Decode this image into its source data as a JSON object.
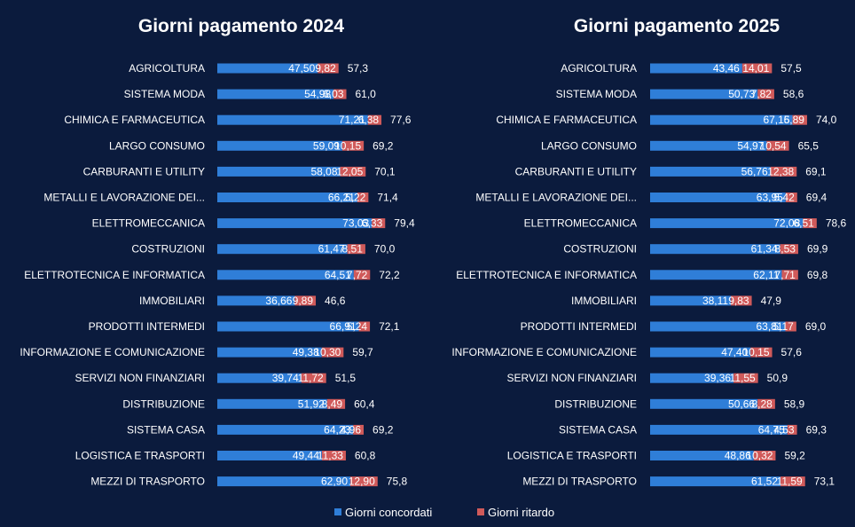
{
  "colors": {
    "background": "#0b1b3d",
    "agreed": "#2f7ed8",
    "delay": "#d05a5a",
    "text": "#ffffff"
  },
  "legend": [
    {
      "label": "Giorni concordati",
      "color": "#2f7ed8"
    },
    {
      "label": "Giorni ritardo",
      "color": "#d05a5a"
    }
  ],
  "chart_data": [
    {
      "type": "bar",
      "orientation": "horizontal",
      "stacked": true,
      "title": "Giorni pagamento 2024",
      "categories": [
        "AGRICOLTURA",
        "SISTEMA MODA",
        "CHIMICA E FARMACEUTICA",
        "LARGO CONSUMO",
        "CARBURANTI E UTILITY",
        "METALLI E LAVORAZIONE DEI...",
        "ELETTROMECCANICA",
        "COSTRUZIONI",
        "ELETTROTECNICA E INFORMATICA",
        "IMMOBILIARI",
        "PRODOTTI INTERMEDI",
        "INFORMAZIONE E COMUNICAZIONE",
        "SERVIZI NON FINANZIARI",
        "DISTRIBUZIONE",
        "SISTEMA CASA",
        "LOGISTICA E TRASPORTI",
        "MEZZI DI TRASPORTO"
      ],
      "series": [
        {
          "name": "Giorni concordati",
          "values": [
            47.5,
            54.98,
            71.21,
            59.09,
            58.08,
            66.21,
            73.03,
            61.47,
            64.51,
            36.66,
            66.91,
            49.38,
            39.74,
            51.92,
            64.23,
            49.44,
            62.9
          ],
          "labels": [
            "47,50",
            "54,98",
            "71,21",
            "59,09",
            "58,08",
            "66,21",
            "73,03",
            "61,47",
            "64,51",
            "36,66",
            "66,91",
            "49,38",
            "39,74",
            "51,92",
            "64,23",
            "49,44",
            "62,90"
          ]
        },
        {
          "name": "Giorni ritardo",
          "values": [
            9.82,
            6.03,
            6.38,
            10.15,
            12.05,
            5.22,
            6.33,
            8.51,
            7.72,
            9.89,
            5.24,
            10.3,
            11.72,
            8.49,
            4.96,
            11.33,
            12.9
          ],
          "labels": [
            "9,82",
            "6,03",
            "6,38",
            "10,15",
            "12,05",
            "5,22",
            "6,33",
            "8,51",
            "7,72",
            "9,89",
            "5,24",
            "10,30",
            "11,72",
            "8,49",
            "4,96",
            "11,33",
            "12,90"
          ]
        }
      ],
      "totals": [
        57.3,
        61.0,
        77.6,
        69.2,
        70.1,
        71.4,
        79.4,
        70.0,
        72.2,
        46.6,
        72.1,
        59.7,
        51.5,
        60.4,
        69.2,
        60.8,
        75.8
      ],
      "total_labels": [
        "57,3",
        "61,0",
        "77,6",
        "69,2",
        "70,1",
        "71,4",
        "79,4",
        "70,0",
        "72,2",
        "46,6",
        "72,1",
        "59,7",
        "51,5",
        "60,4",
        "69,2",
        "60,8",
        "75,8"
      ],
      "xlim": [
        0,
        100
      ],
      "grid": false
    },
    {
      "type": "bar",
      "orientation": "horizontal",
      "stacked": true,
      "title": "Giorni pagamento 2025",
      "categories": [
        "AGRICOLTURA",
        "SISTEMA MODA",
        "CHIMICA E FARMACEUTICA",
        "LARGO CONSUMO",
        "CARBURANTI E UTILITY",
        "METALLI E LAVORAZIONE DEI...",
        "ELETTROMECCANICA",
        "COSTRUZIONI",
        "ELETTROTECNICA E INFORMATICA",
        "IMMOBILIARI",
        "PRODOTTI INTERMEDI",
        "INFORMAZIONE E COMUNICAZIONE",
        "SERVIZI NON FINANZIARI",
        "DISTRIBUZIONE",
        "SISTEMA CASA",
        "LOGISTICA E TRASPORTI",
        "MEZZI DI TRASPORTO"
      ],
      "series": [
        {
          "name": "Giorni concordati",
          "values": [
            43.46,
            50.73,
            67.15,
            54.97,
            56.76,
            63.95,
            72.08,
            61.34,
            62.11,
            38.11,
            63.81,
            47.4,
            39.36,
            50.66,
            64.75,
            48.86,
            61.52
          ],
          "labels": [
            "43,46",
            "50,73",
            "67,15",
            "54,97",
            "56,76",
            "63,95",
            "72,08",
            "61,34",
            "62,11",
            "38,11",
            "63,81",
            "47,40",
            "39,36",
            "50,66",
            "64,75",
            "48,86",
            "61,52"
          ]
        },
        {
          "name": "Giorni ritardo",
          "values": [
            14.01,
            7.82,
            6.89,
            10.54,
            12.38,
            5.42,
            6.51,
            8.53,
            7.71,
            9.83,
            5.17,
            10.15,
            11.55,
            8.28,
            4.53,
            10.32,
            11.59
          ],
          "labels": [
            "14,01",
            "7,82",
            "6,89",
            "10,54",
            "12,38",
            "5,42",
            "6,51",
            "8,53",
            "7,71",
            "9,83",
            "5,17",
            "10,15",
            "11,55",
            "8,28",
            "4,53",
            "10,32",
            "11,59"
          ]
        }
      ],
      "totals": [
        57.5,
        58.6,
        74.0,
        65.5,
        69.1,
        69.4,
        78.6,
        69.9,
        69.8,
        47.9,
        69.0,
        57.6,
        50.9,
        58.9,
        69.3,
        59.2,
        73.1
      ],
      "total_labels": [
        "57,5",
        "58,6",
        "74,0",
        "65,5",
        "69,1",
        "69,4",
        "78,6",
        "69,9",
        "69,8",
        "47,9",
        "69,0",
        "57,6",
        "50,9",
        "58,9",
        "69,3",
        "59,2",
        "73,1"
      ],
      "xlim": [
        0,
        100
      ],
      "grid": false
    }
  ]
}
